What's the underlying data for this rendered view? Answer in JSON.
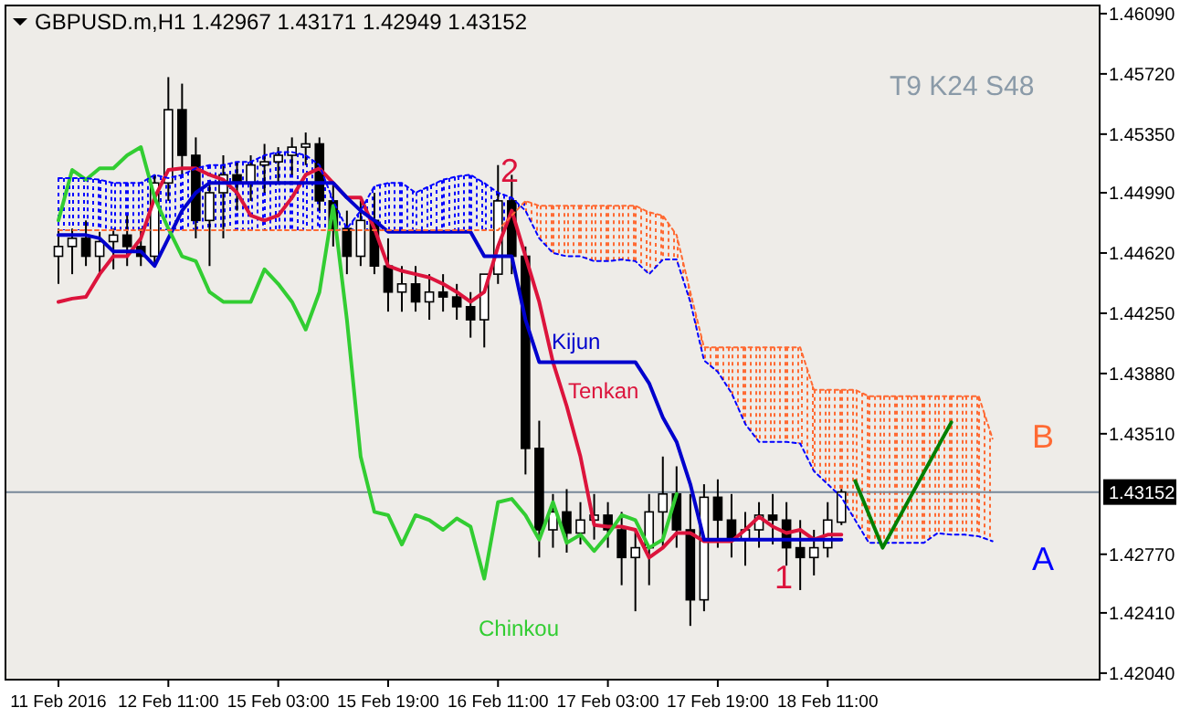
{
  "chart_data": {
    "type": "candlestick",
    "title": "GBPUSD.m,H1  1.42967 1.43171 1.42949 1.43152",
    "categories": [
      "11 Feb 2016",
      null,
      null,
      null,
      null,
      null,
      null,
      null,
      "12 Feb 11:00",
      null,
      null,
      null,
      null,
      null,
      null,
      null,
      "15 Feb 03:00",
      null,
      null,
      null,
      null,
      null,
      null,
      null,
      "15 Feb 19:00",
      null,
      null,
      null,
      null,
      null,
      null,
      null,
      "16 Feb 11:00",
      null,
      null,
      null,
      null,
      null,
      null,
      null,
      "17 Feb 03:00",
      null,
      null,
      null,
      null,
      null,
      null,
      null,
      "17 Feb 19:00",
      null,
      null,
      null,
      null,
      null,
      null,
      null,
      "18 Feb 11:00",
      null,
      null,
      null,
      null,
      null,
      null,
      null,
      null,
      null,
      null,
      null,
      null,
      null,
      null,
      null,
      null,
      null,
      null,
      null
    ],
    "ohlc": [
      [
        1.446,
        1.4477,
        1.4443,
        1.4466
      ],
      [
        1.4466,
        1.4477,
        1.4449,
        1.4471
      ],
      [
        1.4471,
        1.4482,
        1.4454,
        1.446
      ],
      [
        1.446,
        1.4475,
        1.4449,
        1.4469
      ],
      [
        1.4469,
        1.4477,
        1.4452,
        1.4473
      ],
      [
        1.4473,
        1.4485,
        1.4454,
        1.4466
      ],
      [
        1.4466,
        1.4477,
        1.4454,
        1.446
      ],
      [
        1.446,
        1.451,
        1.4454,
        1.4505
      ],
      [
        1.4505,
        1.457,
        1.4494,
        1.455
      ],
      [
        1.455,
        1.4566,
        1.451,
        1.4522
      ],
      [
        1.4522,
        1.4533,
        1.4471,
        1.4482
      ],
      [
        1.4482,
        1.4505,
        1.4454,
        1.4499
      ],
      [
        1.4499,
        1.4522,
        1.4471,
        1.451
      ],
      [
        1.451,
        1.4518,
        1.4488,
        1.4505
      ],
      [
        1.4505,
        1.4522,
        1.4494,
        1.4516
      ],
      [
        1.4516,
        1.4529,
        1.4499,
        1.4518
      ],
      [
        1.4518,
        1.4527,
        1.4505,
        1.4522
      ],
      [
        1.4522,
        1.4533,
        1.451,
        1.4527
      ],
      [
        1.4527,
        1.4536,
        1.4516,
        1.4529
      ],
      [
        1.4529,
        1.4533,
        1.4488,
        1.4494
      ],
      [
        1.4494,
        1.4505,
        1.4466,
        1.4477
      ],
      [
        1.4477,
        1.4488,
        1.4449,
        1.446
      ],
      [
        1.446,
        1.4494,
        1.4454,
        1.4482
      ],
      [
        1.4482,
        1.4499,
        1.4449,
        1.4454
      ],
      [
        1.4454,
        1.4471,
        1.4426,
        1.4438
      ],
      [
        1.4438,
        1.4454,
        1.4426,
        1.4443
      ],
      [
        1.4443,
        1.4454,
        1.4426,
        1.4432
      ],
      [
        1.4432,
        1.4449,
        1.4421,
        1.4438
      ],
      [
        1.4438,
        1.4449,
        1.4426,
        1.4435
      ],
      [
        1.4435,
        1.4443,
        1.4421,
        1.4429
      ],
      [
        1.4429,
        1.4438,
        1.441,
        1.4421
      ],
      [
        1.4421,
        1.4449,
        1.4404,
        1.4449
      ],
      [
        1.4449,
        1.4516,
        1.4443,
        1.4494
      ],
      [
        1.4494,
        1.451,
        1.4449,
        1.446
      ],
      [
        1.446,
        1.4466,
        1.4326,
        1.4342
      ],
      [
        1.4342,
        1.4359,
        1.4275,
        1.4292
      ],
      [
        1.4292,
        1.4314,
        1.4281,
        1.4303
      ],
      [
        1.4303,
        1.4317,
        1.4278,
        1.429
      ],
      [
        1.429,
        1.4309,
        1.4283,
        1.4298
      ],
      [
        1.4298,
        1.4314,
        1.4286,
        1.4301
      ],
      [
        1.4301,
        1.4309,
        1.4281,
        1.4292
      ],
      [
        1.4292,
        1.4303,
        1.4258,
        1.4275
      ],
      [
        1.4275,
        1.4292,
        1.4242,
        1.4281
      ],
      [
        1.4281,
        1.4314,
        1.4258,
        1.4303
      ],
      [
        1.4303,
        1.4337,
        1.4281,
        1.4314
      ],
      [
        1.4314,
        1.4331,
        1.4281,
        1.4292
      ],
      [
        1.4292,
        1.4314,
        1.4233,
        1.4249
      ],
      [
        1.4249,
        1.432,
        1.4242,
        1.4312
      ],
      [
        1.4312,
        1.4323,
        1.4281,
        1.4298
      ],
      [
        1.4298,
        1.4314,
        1.4275,
        1.4286
      ],
      [
        1.4286,
        1.4303,
        1.427,
        1.4292
      ],
      [
        1.4292,
        1.4309,
        1.4281,
        1.4301
      ],
      [
        1.4301,
        1.4314,
        1.4283,
        1.4298
      ],
      [
        1.4298,
        1.4309,
        1.427,
        1.4281
      ],
      [
        1.4281,
        1.4298,
        1.4255,
        1.4275
      ],
      [
        1.4275,
        1.4292,
        1.4264,
        1.4281
      ],
      [
        1.4281,
        1.4309,
        1.4275,
        1.4298
      ],
      [
        1.42967,
        1.43171,
        1.42949,
        1.43152
      ],
      null,
      null,
      null,
      null,
      null,
      null,
      null,
      null,
      null,
      null,
      null,
      null,
      null,
      null,
      null,
      null,
      null,
      null
    ],
    "series": [
      {
        "name": "Tenkan",
        "type": "line",
        "color": "#dc143c",
        "values": [
          1.4432,
          1.4434,
          1.4435,
          1.4449,
          1.446,
          1.446,
          1.4471,
          1.4496,
          1.4513,
          1.4514,
          1.4514,
          1.451,
          1.4507,
          1.4499,
          1.4485,
          1.4482,
          1.4485,
          1.4496,
          1.451,
          1.4514,
          1.4505,
          1.4496,
          1.4496,
          1.4477,
          1.4454,
          1.4451,
          1.4449,
          1.4447,
          1.4443,
          1.4438,
          1.4432,
          1.4438,
          1.4466,
          1.4488,
          1.446,
          1.4432,
          1.4395,
          1.4368,
          1.4337,
          1.4295,
          1.4294,
          1.4294,
          1.4292,
          1.4275,
          1.4281,
          1.429,
          1.429,
          1.4285,
          1.4285,
          1.4285,
          1.4292,
          1.43,
          1.4294,
          1.429,
          1.4292,
          1.4286,
          1.4289,
          1.4289,
          null,
          null,
          null,
          null,
          null,
          null,
          null,
          null,
          null,
          null,
          null,
          null,
          null,
          null,
          null,
          null,
          null,
          null
        ]
      },
      {
        "name": "Kijun",
        "type": "line",
        "color": "#0000cd",
        "values": [
          1.4473,
          1.4473,
          1.4473,
          1.4471,
          1.4463,
          1.4463,
          1.4463,
          1.4454,
          1.4471,
          1.4488,
          1.4499,
          1.4505,
          1.4505,
          1.4505,
          1.4505,
          1.4505,
          1.4505,
          1.4505,
          1.4505,
          1.4505,
          1.4505,
          1.4496,
          1.4488,
          1.4482,
          1.4475,
          1.4475,
          1.4475,
          1.4475,
          1.4475,
          1.4475,
          1.4475,
          1.446,
          1.446,
          1.446,
          1.4421,
          1.4395,
          1.4395,
          1.4395,
          1.4395,
          1.4395,
          1.4395,
          1.4395,
          1.4395,
          1.4382,
          1.4361,
          1.4346,
          1.432,
          1.4286,
          1.4286,
          1.4286,
          1.4286,
          1.4286,
          1.4286,
          1.4286,
          1.4286,
          1.4286,
          1.4286,
          1.4286,
          null,
          null,
          null,
          null,
          null,
          null,
          null,
          null,
          null,
          null,
          null,
          null,
          null,
          null,
          null,
          null,
          null,
          null
        ]
      },
      {
        "name": "Chinkou",
        "type": "line",
        "color": "#32cd32",
        "values": [
          1.4482,
          1.4513,
          1.4507,
          1.4514,
          1.4514,
          1.4522,
          1.4527,
          1.4496,
          1.4477,
          1.446,
          1.4457,
          1.4438,
          1.4432,
          1.4432,
          1.4432,
          1.4452,
          1.4443,
          1.4432,
          1.4415,
          1.4438,
          1.4491,
          1.4421,
          1.4337,
          1.4303,
          1.4301,
          1.4283,
          1.4301,
          1.4298,
          1.4292,
          1.4299,
          1.4294,
          1.4262,
          1.4309,
          1.4311,
          1.4301,
          1.4286,
          1.4309,
          1.4284,
          1.4289,
          1.4279,
          1.4289,
          1.4301,
          1.4298,
          1.4281,
          1.4286,
          1.4314,
          null,
          null,
          null,
          null,
          null,
          null,
          null,
          null,
          null,
          null,
          null,
          null,
          null,
          null,
          null,
          null,
          null,
          null,
          null,
          null,
          null,
          null,
          null,
          null,
          null,
          null,
          null,
          null,
          null,
          null
        ]
      },
      {
        "name": "A",
        "type": "line",
        "line_style": "dotted",
        "color": "#0000ff",
        "values": [
          1.4508,
          1.4508,
          1.4508,
          1.4507,
          1.4505,
          1.4505,
          1.4505,
          1.451,
          1.4508,
          1.451,
          1.4514,
          1.4516,
          1.4516,
          1.4518,
          1.4518,
          1.4522,
          1.4524,
          1.4524,
          1.4522,
          1.4516,
          1.4494,
          1.4477,
          1.4488,
          1.4503,
          1.4505,
          1.4505,
          1.4499,
          1.4503,
          1.4507,
          1.4509,
          1.451,
          1.4505,
          1.4499,
          1.4496,
          1.4488,
          1.4471,
          1.4462,
          1.446,
          1.446,
          1.4457,
          1.4457,
          1.4458,
          1.4457,
          1.4449,
          1.4458,
          1.4458,
          1.4432,
          1.4396,
          1.4389,
          1.4376,
          1.4357,
          1.4346,
          1.4346,
          1.4346,
          1.4345,
          1.4328,
          1.432,
          1.4312,
          1.4298,
          1.4284,
          1.4284,
          1.4284,
          1.4284,
          1.4284,
          1.429,
          1.4289,
          1.4289,
          1.4288,
          1.4285,
          null,
          null,
          null,
          null,
          null,
          null,
          null
        ]
      },
      {
        "name": "B",
        "type": "line",
        "line_style": "dotted",
        "color": "#ff6a33",
        "values": [
          1.4476,
          1.4476,
          1.4476,
          1.4476,
          1.4476,
          1.4476,
          1.4476,
          1.4476,
          1.4476,
          1.4476,
          1.4476,
          1.4476,
          1.4476,
          1.4476,
          1.4476,
          1.4476,
          1.4476,
          1.4476,
          1.4476,
          1.4476,
          1.4476,
          1.4476,
          1.4476,
          1.4476,
          1.4476,
          1.4476,
          1.4476,
          1.4476,
          1.4476,
          1.4476,
          1.4476,
          1.4476,
          1.4476,
          1.4485,
          1.4494,
          1.4491,
          1.4491,
          1.4491,
          1.4491,
          1.4491,
          1.4491,
          1.4491,
          1.4491,
          1.4487,
          1.4485,
          1.4473,
          1.4438,
          1.4404,
          1.4404,
          1.4404,
          1.4404,
          1.4404,
          1.4404,
          1.4404,
          1.4404,
          1.4378,
          1.4378,
          1.4378,
          1.4378,
          1.4374,
          1.4374,
          1.4374,
          1.4374,
          1.4374,
          1.4374,
          1.4374,
          1.4374,
          1.4374,
          1.4348,
          null,
          null,
          null,
          null,
          null,
          null,
          null
        ]
      },
      {
        "type": "line",
        "color": "#008000",
        "values": [
          null,
          null,
          null,
          null,
          null,
          null,
          null,
          null,
          null,
          null,
          null,
          null,
          null,
          null,
          null,
          null,
          null,
          null,
          null,
          null,
          null,
          null,
          null,
          null,
          null,
          null,
          null,
          null,
          null,
          null,
          null,
          null,
          null,
          null,
          null,
          null,
          null,
          null,
          null,
          null,
          null,
          null,
          null,
          null,
          null,
          null,
          null,
          null,
          null,
          null,
          null,
          null,
          null,
          null,
          null,
          null,
          null,
          null,
          1.4322,
          null,
          1.4281,
          null,
          null,
          null,
          null,
          1.4358,
          null,
          null,
          null,
          null,
          null,
          null,
          null,
          null,
          null,
          null
        ]
      }
    ],
    "ylim": [
      1.42,
      1.4614
    ],
    "yticks": [
      {
        "value": 1.4609,
        "label": "1.46090"
      },
      {
        "value": 1.4572,
        "label": "1.45720"
      },
      {
        "value": 1.4535,
        "label": "1.45350"
      },
      {
        "value": 1.4499,
        "label": "1.44990"
      },
      {
        "value": 1.4462,
        "label": "1.44620"
      },
      {
        "value": 1.4425,
        "label": "1.44250"
      },
      {
        "value": 1.4388,
        "label": "1.43880"
      },
      {
        "value": 1.4351,
        "label": "1.43510"
      },
      {
        "value": 1.4277,
        "label": "1.42770"
      },
      {
        "value": 1.4241,
        "label": "1.42410"
      },
      {
        "value": 1.4204,
        "label": "1.42040"
      }
    ],
    "ref_lines": [
      {
        "axis": "y",
        "value": 1.43152,
        "label": "1.43152",
        "color": "#778899"
      }
    ],
    "annotations": [
      "T9 K24 S48",
      {
        "text": "2",
        "y": 1.4497
      },
      {
        "text": "1",
        "y": 1.4283
      }
    ],
    "legend": false,
    "grid": false
  }
}
